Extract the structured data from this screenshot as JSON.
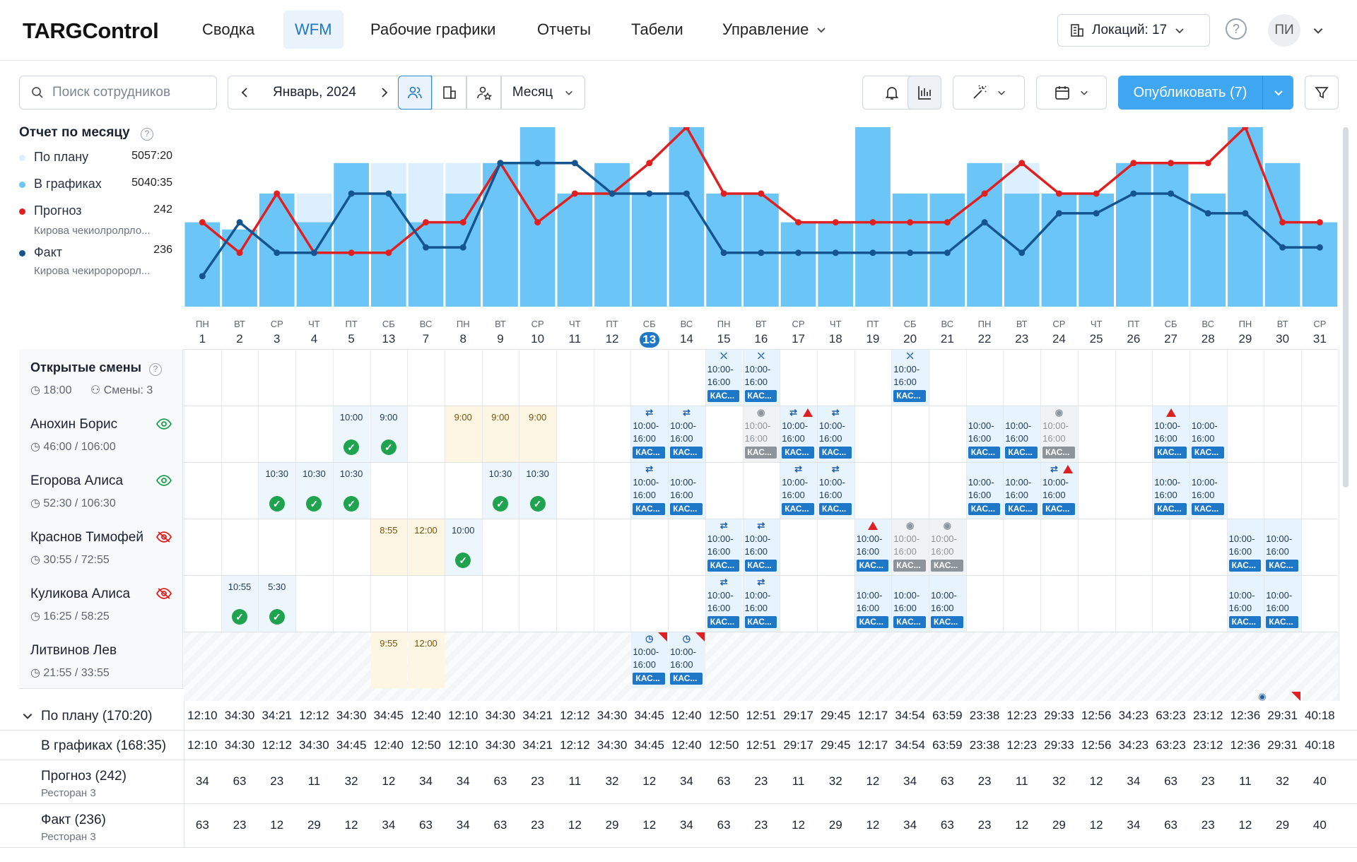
{
  "app": {
    "logo": "TARGControl"
  },
  "nav": [
    {
      "label": "Сводка"
    },
    {
      "label": "WFM",
      "active": true
    },
    {
      "label": "Рабочие графики"
    },
    {
      "label": "Отчеты"
    },
    {
      "label": "Табели"
    },
    {
      "label": "Управление"
    }
  ],
  "header": {
    "locations": "Локаций: 17",
    "help": "?",
    "avatar": "ПИ"
  },
  "toolbar": {
    "search_placeholder": "Поиск сотрудников",
    "month": "Январь, 2024",
    "period": "Месяц",
    "publish": "Опубликовать (7)"
  },
  "legend": {
    "title": "Отчет по месяцу",
    "items": [
      {
        "label": "По плану",
        "value": "5057:20",
        "color": "#dcefff"
      },
      {
        "label": "В графиках",
        "value": "5040:35",
        "color": "#6bc6f7"
      },
      {
        "label": "Прогноз",
        "value": "242",
        "sub": "Кирова чекиолролрло...",
        "color": "#e02020"
      },
      {
        "label": "Факт",
        "value": "236",
        "sub": "Кирова чекироророрл...",
        "color": "#14548f"
      }
    ]
  },
  "days": [
    {
      "dw": "ПН",
      "dn": "1"
    },
    {
      "dw": "ВТ",
      "dn": "2"
    },
    {
      "dw": "СР",
      "dn": "3"
    },
    {
      "dw": "ЧТ",
      "dn": "4"
    },
    {
      "dw": "ПТ",
      "dn": "5"
    },
    {
      "dw": "СБ",
      "dn": "13"
    },
    {
      "dw": "ВС",
      "dn": "7"
    },
    {
      "dw": "ПН",
      "dn": "8"
    },
    {
      "dw": "ВТ",
      "dn": "9"
    },
    {
      "dw": "СР",
      "dn": "10"
    },
    {
      "dw": "ЧТ",
      "dn": "11"
    },
    {
      "dw": "ПТ",
      "dn": "12"
    },
    {
      "dw": "СБ",
      "dn": "13",
      "today": true
    },
    {
      "dw": "ВС",
      "dn": "14"
    },
    {
      "dw": "ПН",
      "dn": "15"
    },
    {
      "dw": "ВТ",
      "dn": "16"
    },
    {
      "dw": "СР",
      "dn": "17"
    },
    {
      "dw": "ЧТ",
      "dn": "18"
    },
    {
      "dw": "ПТ",
      "dn": "19"
    },
    {
      "dw": "СБ",
      "dn": "20"
    },
    {
      "dw": "ВС",
      "dn": "21"
    },
    {
      "dw": "ПН",
      "dn": "22"
    },
    {
      "dw": "ВТ",
      "dn": "23"
    },
    {
      "dw": "СР",
      "dn": "24"
    },
    {
      "dw": "ЧТ",
      "dn": "25"
    },
    {
      "dw": "ПТ",
      "dn": "26"
    },
    {
      "dw": "СБ",
      "dn": "27"
    },
    {
      "dw": "ВС",
      "dn": "28"
    },
    {
      "dw": "ПН",
      "dn": "29"
    },
    {
      "dw": "ВТ",
      "dn": "30"
    },
    {
      "dw": "СР",
      "dn": "31"
    }
  ],
  "chart_data": {
    "type": "bar",
    "categories": [
      "1",
      "2",
      "3",
      "4",
      "5",
      "13",
      "7",
      "8",
      "9",
      "10",
      "11",
      "12",
      "13",
      "14",
      "15",
      "16",
      "17",
      "18",
      "19",
      "20",
      "21",
      "22",
      "23",
      "24",
      "25",
      "26",
      "27",
      "28",
      "29",
      "30",
      "31"
    ],
    "ylim": [
      0,
      100
    ],
    "series": [
      {
        "name": "По плану",
        "kind": "bar",
        "values": [
          47,
          43,
          63,
          63,
          80,
          80,
          80,
          80,
          80,
          100,
          63,
          80,
          63,
          80,
          63,
          63,
          47,
          47,
          100,
          63,
          63,
          63,
          80,
          63,
          63,
          80,
          80,
          63,
          80,
          80,
          47
        ]
      },
      {
        "name": "В графиках",
        "kind": "bar",
        "values": [
          47,
          43,
          63,
          47,
          80,
          63,
          47,
          63,
          80,
          100,
          63,
          80,
          63,
          100,
          63,
          63,
          47,
          47,
          100,
          63,
          63,
          80,
          63,
          63,
          63,
          80,
          80,
          63,
          100,
          80,
          47
        ]
      },
      {
        "name": "Прогноз",
        "kind": "line",
        "color": "#e02020",
        "values": [
          47,
          30,
          63,
          30,
          30,
          30,
          47,
          47,
          80,
          47,
          63,
          63,
          80,
          100,
          63,
          63,
          47,
          47,
          47,
          47,
          47,
          63,
          80,
          63,
          63,
          80,
          80,
          80,
          100,
          47,
          47
        ]
      },
      {
        "name": "Факт",
        "kind": "line",
        "color": "#14548f",
        "values": [
          17,
          47,
          30,
          30,
          63,
          63,
          33,
          33,
          80,
          80,
          80,
          63,
          63,
          63,
          30,
          30,
          30,
          30,
          30,
          30,
          30,
          47,
          30,
          52,
          52,
          63,
          63,
          52,
          52,
          33,
          33
        ]
      }
    ]
  },
  "open_shifts": {
    "title": "Открытые смены",
    "time": "18:00",
    "count": "Смены: 3"
  },
  "employees": [
    {
      "name": "Анохин Борис",
      "hours": "46:00 / 106:00",
      "visible": true
    },
    {
      "name": "Егорова Алиса",
      "hours": "52:30 / 106:30",
      "visible": true
    },
    {
      "name": "Краснов Тимофей",
      "hours": "30:55 / 72:55",
      "visible": false
    },
    {
      "name": "Куликова Алиса",
      "hours": "16:25 / 58:25",
      "visible": false
    },
    {
      "name": "Литвинов Лев",
      "hours": "21:55 / 33:55",
      "visible": null
    }
  ],
  "shift_time": "10:00-16:00",
  "shift_tag": "КАС...",
  "cells": [
    {
      "row": 0,
      "day": 14,
      "style": "blue",
      "icon": "person-x"
    },
    {
      "row": 0,
      "day": 15,
      "style": "blue",
      "icon": "person-x"
    },
    {
      "row": 0,
      "day": 19,
      "style": "blue",
      "icon": "person-x"
    },
    {
      "row": 1,
      "day": 4,
      "style": "time",
      "time": "10:00",
      "ok": true
    },
    {
      "row": 1,
      "day": 5,
      "style": "time",
      "time": "9:00",
      "ok": true
    },
    {
      "row": 1,
      "day": 7,
      "style": "amber",
      "time": "9:00"
    },
    {
      "row": 1,
      "day": 8,
      "style": "amber",
      "time": "9:00"
    },
    {
      "row": 1,
      "day": 9,
      "style": "amber",
      "time": "9:00"
    },
    {
      "row": 1,
      "day": 12,
      "style": "blue",
      "icon": "swap"
    },
    {
      "row": 1,
      "day": 13,
      "style": "blue",
      "icon": "swap"
    },
    {
      "row": 1,
      "day": 15,
      "style": "grey",
      "icon": "eye"
    },
    {
      "row": 1,
      "day": 16,
      "style": "blue",
      "icon": "swap-warn"
    },
    {
      "row": 1,
      "day": 17,
      "style": "blue",
      "icon": "swap"
    },
    {
      "row": 1,
      "day": 21,
      "style": "blue"
    },
    {
      "row": 1,
      "day": 22,
      "style": "blue"
    },
    {
      "row": 1,
      "day": 23,
      "style": "grey",
      "icon": "eye"
    },
    {
      "row": 1,
      "day": 26,
      "style": "blue",
      "icon": "warn"
    },
    {
      "row": 1,
      "day": 27,
      "style": "blue"
    },
    {
      "row": 2,
      "day": 2,
      "style": "time",
      "time": "10:30",
      "ok": true
    },
    {
      "row": 2,
      "day": 3,
      "style": "time",
      "time": "10:30",
      "ok": true
    },
    {
      "row": 2,
      "day": 4,
      "style": "time",
      "time": "10:30",
      "ok": true
    },
    {
      "row": 2,
      "day": 8,
      "style": "time",
      "time": "10:30",
      "ok": true
    },
    {
      "row": 2,
      "day": 9,
      "style": "time",
      "time": "10:30",
      "ok": true
    },
    {
      "row": 2,
      "day": 12,
      "style": "blue",
      "icon": "swap"
    },
    {
      "row": 2,
      "day": 13,
      "style": "blue"
    },
    {
      "row": 2,
      "day": 16,
      "style": "blue",
      "icon": "swap"
    },
    {
      "row": 2,
      "day": 17,
      "style": "blue",
      "icon": "swap"
    },
    {
      "row": 2,
      "day": 21,
      "style": "blue"
    },
    {
      "row": 2,
      "day": 22,
      "style": "blue"
    },
    {
      "row": 2,
      "day": 23,
      "style": "blue",
      "icon": "swap-warn"
    },
    {
      "row": 2,
      "day": 26,
      "style": "blue"
    },
    {
      "row": 2,
      "day": 27,
      "style": "blue"
    },
    {
      "row": 3,
      "day": 5,
      "style": "amber",
      "time": "8:55"
    },
    {
      "row": 3,
      "day": 6,
      "style": "amber",
      "time": "12:00"
    },
    {
      "row": 3,
      "day": 7,
      "style": "time",
      "time": "10:00",
      "ok": true
    },
    {
      "row": 3,
      "day": 14,
      "style": "blue",
      "icon": "swap"
    },
    {
      "row": 3,
      "day": 15,
      "style": "blue",
      "icon": "swap"
    },
    {
      "row": 3,
      "day": 18,
      "style": "blue",
      "icon": "warn"
    },
    {
      "row": 3,
      "day": 19,
      "style": "grey",
      "icon": "eye"
    },
    {
      "row": 3,
      "day": 20,
      "style": "grey",
      "icon": "eye"
    },
    {
      "row": 3,
      "day": 28,
      "style": "blue"
    },
    {
      "row": 3,
      "day": 29,
      "style": "blue"
    },
    {
      "row": 4,
      "day": 1,
      "style": "time",
      "time": "10:55",
      "ok": true
    },
    {
      "row": 4,
      "day": 2,
      "style": "time",
      "time": "5:30",
      "ok": true
    },
    {
      "row": 4,
      "day": 14,
      "style": "blue",
      "icon": "swap"
    },
    {
      "row": 4,
      "day": 15,
      "style": "blue",
      "icon": "swap"
    },
    {
      "row": 4,
      "day": 18,
      "style": "blue"
    },
    {
      "row": 4,
      "day": 19,
      "style": "blue"
    },
    {
      "row": 4,
      "day": 20,
      "style": "blue"
    },
    {
      "row": 4,
      "day": 28,
      "style": "blue"
    },
    {
      "row": 4,
      "day": 29,
      "style": "blue"
    },
    {
      "row": 5,
      "day": 5,
      "style": "amber",
      "time": "9:55"
    },
    {
      "row": 5,
      "day": 6,
      "style": "amber",
      "time": "12:00"
    },
    {
      "row": 5,
      "day": 12,
      "style": "blue",
      "icon": "clock",
      "flag": true
    },
    {
      "row": 5,
      "day": 13,
      "style": "blue",
      "icon": "clock",
      "flag": true
    }
  ],
  "summary": {
    "plan_label": "По плану (170:20)",
    "plan": [
      "12:10",
      "34:30",
      "34:21",
      "12:12",
      "34:30",
      "34:45",
      "12:40",
      "12:10",
      "34:30",
      "34:21",
      "12:12",
      "34:30",
      "34:45",
      "12:40",
      "12:50",
      "12:51",
      "29:17",
      "29:45",
      "12:17",
      "34:54",
      "63:59",
      "23:38",
      "12:23",
      "29:33",
      "12:56",
      "34:23",
      "63:23",
      "23:12",
      "12:36",
      "29:31",
      "40:18"
    ],
    "sched_label": "В графиках (168:35)",
    "sched": [
      "12:10",
      "34:30",
      "12:12",
      "34:30",
      "34:45",
      "12:40",
      "12:50",
      "12:10",
      "34:30",
      "34:21",
      "12:12",
      "34:30",
      "34:45",
      "12:40",
      "12:50",
      "12:51",
      "29:17",
      "29:45",
      "12:17",
      "34:54",
      "63:59",
      "23:38",
      "12:23",
      "29:33",
      "12:56",
      "34:23",
      "63:23",
      "23:12",
      "12:36",
      "29:31",
      "40:18"
    ],
    "forecast_label": "Прогноз (242)",
    "forecast_sub": "Ресторан 3",
    "forecast": [
      "34",
      "63",
      "23",
      "11",
      "32",
      "12",
      "34",
      "34",
      "63",
      "23",
      "11",
      "32",
      "12",
      "34",
      "63",
      "23",
      "11",
      "32",
      "12",
      "34",
      "63",
      "23",
      "11",
      "32",
      "12",
      "34",
      "63",
      "23",
      "11",
      "32",
      "40"
    ],
    "fact_label": "Факт (236)",
    "fact_sub": "Ресторан 3",
    "fact": [
      "63",
      "23",
      "12",
      "29",
      "12",
      "34",
      "63",
      "34",
      "63",
      "23",
      "12",
      "29",
      "12",
      "34",
      "63",
      "23",
      "12",
      "29",
      "12",
      "34",
      "63",
      "23",
      "12",
      "29",
      "12",
      "34",
      "63",
      "23",
      "12",
      "29",
      "40"
    ]
  }
}
